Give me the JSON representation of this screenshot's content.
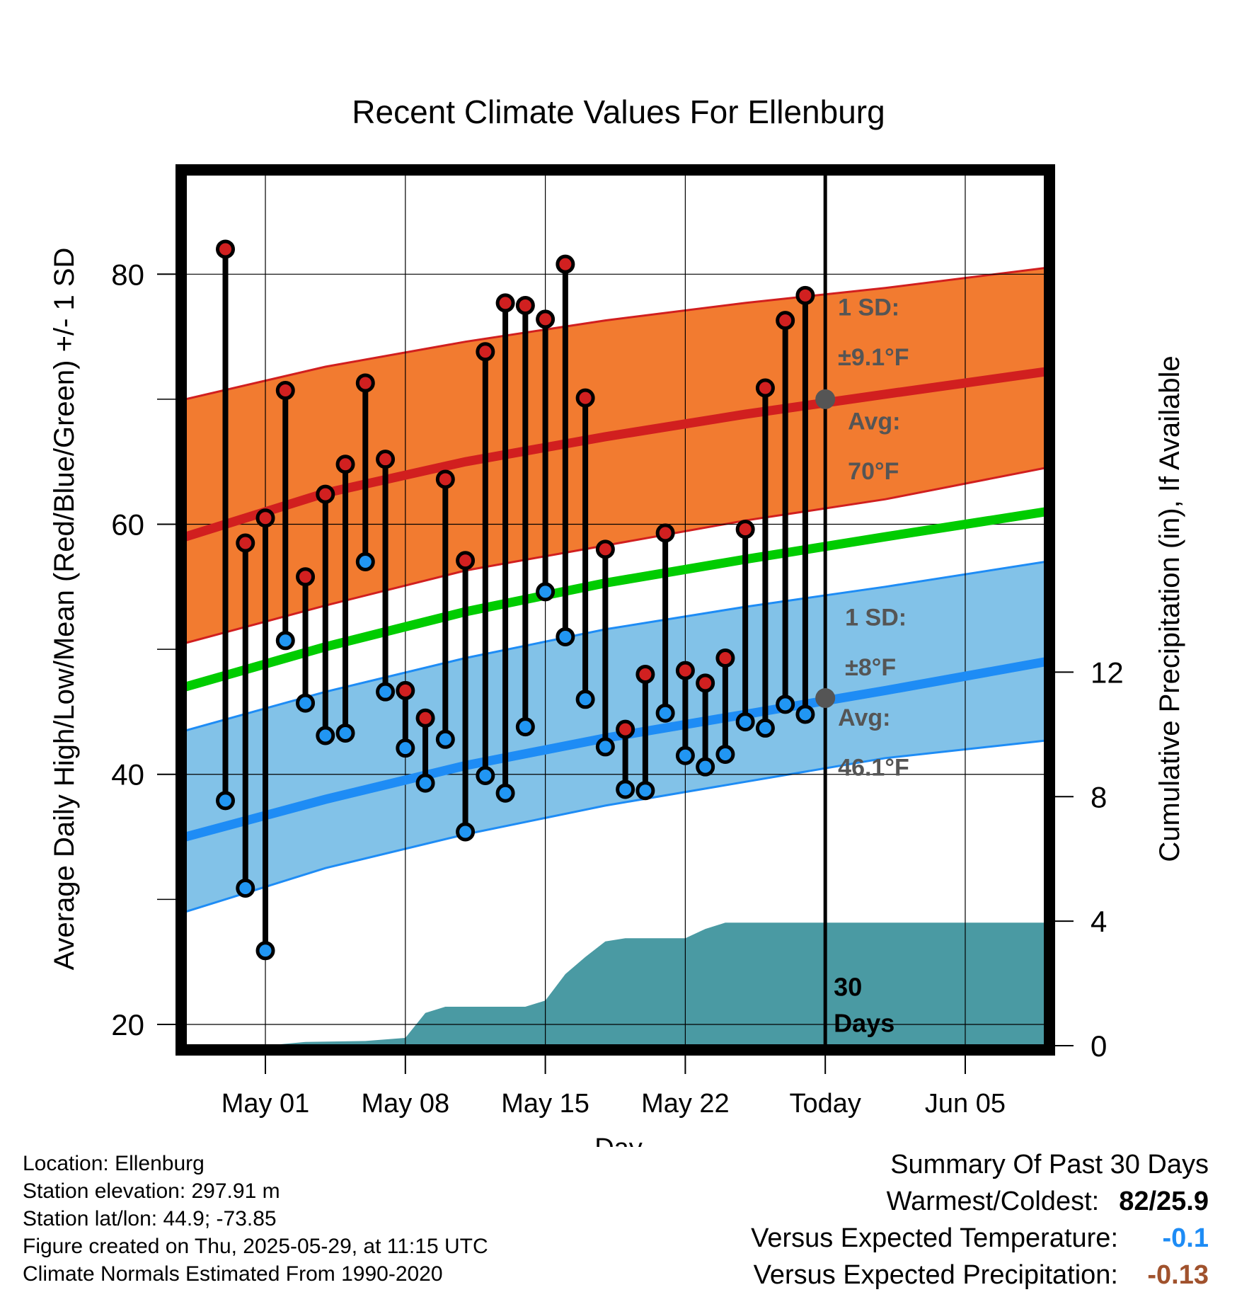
{
  "chart_data": {
    "type": "line",
    "title": "Recent Climate Values For Ellenburg",
    "xlabel": "Day",
    "ylabel": "Average Daily High/Low/Mean (Red/Blue/Green) +/- 1 SD",
    "ylabel_right": "Cumulative Precipitation (in), If Available",
    "ylim": [
      18.3,
      88
    ],
    "y_ticks": [
      "20",
      "40",
      "60",
      "80"
    ],
    "y2lim": [
      0,
      28
    ],
    "y2_ticks": [
      "0",
      "4",
      "8",
      "12"
    ],
    "xlim": [
      "2025-04-27",
      "2025-06-09"
    ],
    "x_ticks": [
      {
        "date": "2025-05-01",
        "label": "May 01"
      },
      {
        "date": "2025-05-08",
        "label": "May 08"
      },
      {
        "date": "2025-05-15",
        "label": "May 15"
      },
      {
        "date": "2025-05-22",
        "label": "May 22"
      },
      {
        "date": "2025-05-29",
        "label": "Today"
      },
      {
        "date": "2025-06-05",
        "label": "Jun 05"
      }
    ],
    "grid": true,
    "colors": {
      "high_band": "#f27b30",
      "high_line": "#d11f1f",
      "low_band": "#82c2e8",
      "low_line": "#1e8cf5",
      "mean_line": "#00cc00",
      "precip": "#4a9aa3",
      "high_marker": "#d12020",
      "low_marker": "#2196f3",
      "annotation": "#555555"
    },
    "normals": {
      "dates": [
        "2025-04-27",
        "2025-05-04",
        "2025-05-11",
        "2025-05-18",
        "2025-05-25",
        "2025-06-01",
        "2025-06-09"
      ],
      "high_mean": [
        59.0,
        62.5,
        65.0,
        67.0,
        68.8,
        70.4,
        72.2
      ],
      "high_upper": [
        70.0,
        72.6,
        74.6,
        76.3,
        77.7,
        78.9,
        80.5
      ],
      "high_lower": [
        50.5,
        53.5,
        56.3,
        58.3,
        60.3,
        62.0,
        64.5
      ],
      "mean": [
        47.0,
        50.2,
        53.0,
        55.3,
        57.2,
        59.0,
        61.0
      ],
      "low_mean": [
        35.0,
        38.0,
        40.7,
        42.9,
        44.8,
        46.7,
        49.0
      ],
      "low_upper": [
        43.5,
        46.6,
        49.3,
        51.6,
        53.4,
        55.0,
        57.0
      ],
      "low_lower": [
        29.0,
        32.5,
        35.2,
        37.5,
        39.4,
        41.3,
        42.7
      ]
    },
    "series": [
      {
        "name": "High",
        "x": [
          "2025-04-29",
          "2025-04-30",
          "2025-05-01",
          "2025-05-02",
          "2025-05-03",
          "2025-05-04",
          "2025-05-05",
          "2025-05-06",
          "2025-05-07",
          "2025-05-08",
          "2025-05-09",
          "2025-05-10",
          "2025-05-11",
          "2025-05-12",
          "2025-05-13",
          "2025-05-14",
          "2025-05-15",
          "2025-05-16",
          "2025-05-17",
          "2025-05-18",
          "2025-05-19",
          "2025-05-20",
          "2025-05-21",
          "2025-05-22",
          "2025-05-23",
          "2025-05-24",
          "2025-05-25",
          "2025-05-26",
          "2025-05-27",
          "2025-05-28"
        ],
        "values": [
          82.0,
          58.5,
          60.5,
          70.7,
          55.8,
          62.4,
          64.8,
          71.3,
          65.2,
          46.7,
          44.5,
          63.6,
          57.1,
          73.8,
          77.7,
          77.5,
          76.4,
          80.8,
          70.1,
          58.0,
          43.6,
          48.0,
          59.3,
          48.3,
          47.3,
          49.3,
          59.6,
          70.9,
          76.3,
          78.3
        ]
      },
      {
        "name": "Low",
        "x": [
          "2025-04-29",
          "2025-04-30",
          "2025-05-01",
          "2025-05-02",
          "2025-05-03",
          "2025-05-04",
          "2025-05-05",
          "2025-05-06",
          "2025-05-07",
          "2025-05-08",
          "2025-05-09",
          "2025-05-10",
          "2025-05-11",
          "2025-05-12",
          "2025-05-13",
          "2025-05-14",
          "2025-05-15",
          "2025-05-16",
          "2025-05-17",
          "2025-05-18",
          "2025-05-19",
          "2025-05-20",
          "2025-05-21",
          "2025-05-22",
          "2025-05-23",
          "2025-05-24",
          "2025-05-25",
          "2025-05-26",
          "2025-05-27",
          "2025-05-28"
        ],
        "values": [
          37.9,
          30.9,
          25.9,
          50.7,
          45.7,
          43.1,
          43.3,
          57.0,
          46.6,
          42.1,
          39.3,
          42.8,
          35.4,
          39.9,
          38.5,
          43.8,
          54.6,
          51.0,
          46.0,
          42.2,
          38.8,
          38.7,
          44.9,
          41.5,
          40.6,
          41.6,
          44.2,
          43.7,
          45.6,
          44.8
        ]
      },
      {
        "name": "Cumulative Precipitation",
        "x": [
          "2025-05-01",
          "2025-05-03",
          "2025-05-06",
          "2025-05-08",
          "2025-05-09",
          "2025-05-10",
          "2025-05-14",
          "2025-05-15",
          "2025-05-16",
          "2025-05-17",
          "2025-05-18",
          "2025-05-19",
          "2025-05-22",
          "2025-05-23",
          "2025-05-24",
          "2025-06-09"
        ],
        "values": [
          0.0,
          0.12,
          0.15,
          0.25,
          1.05,
          1.25,
          1.25,
          1.45,
          2.3,
          2.85,
          3.35,
          3.45,
          3.45,
          3.75,
          3.95,
          3.95
        ]
      }
    ],
    "annotations": {
      "high_sd_label": "1 SD:",
      "high_sd_value": "±9.1°F",
      "high_avg_label": "Avg:",
      "high_avg_value": "70°F",
      "low_sd_label": "1 SD:",
      "low_sd_value": "±8°F",
      "low_avg_label": "Avg:",
      "low_avg_value": "46.1°F",
      "days_number": "30",
      "days_word": "Days",
      "today_high_avg": 70.0,
      "today_low_avg": 46.1
    }
  },
  "footer": {
    "location": "Location: Ellenburg",
    "elevation": "Station elevation: 297.91 m",
    "latlon": "Station lat/lon: 44.9; -73.85",
    "created": "Figure created on Thu, 2025-05-29, at 11:15 UTC",
    "normals": "Climate Normals Estimated From 1990-2020"
  },
  "summary": {
    "title": "Summary Of Past 30 Days",
    "warmest_label": "Warmest/Coldest:",
    "warmest_value": "82/25.9",
    "temp_label": "Versus Expected Temperature:",
    "temp_value": "-0.1",
    "temp_color": "#1e8cf5",
    "precip_label": "Versus Expected Precipitation:",
    "precip_value": "-0.13",
    "precip_color": "#a0522d"
  }
}
